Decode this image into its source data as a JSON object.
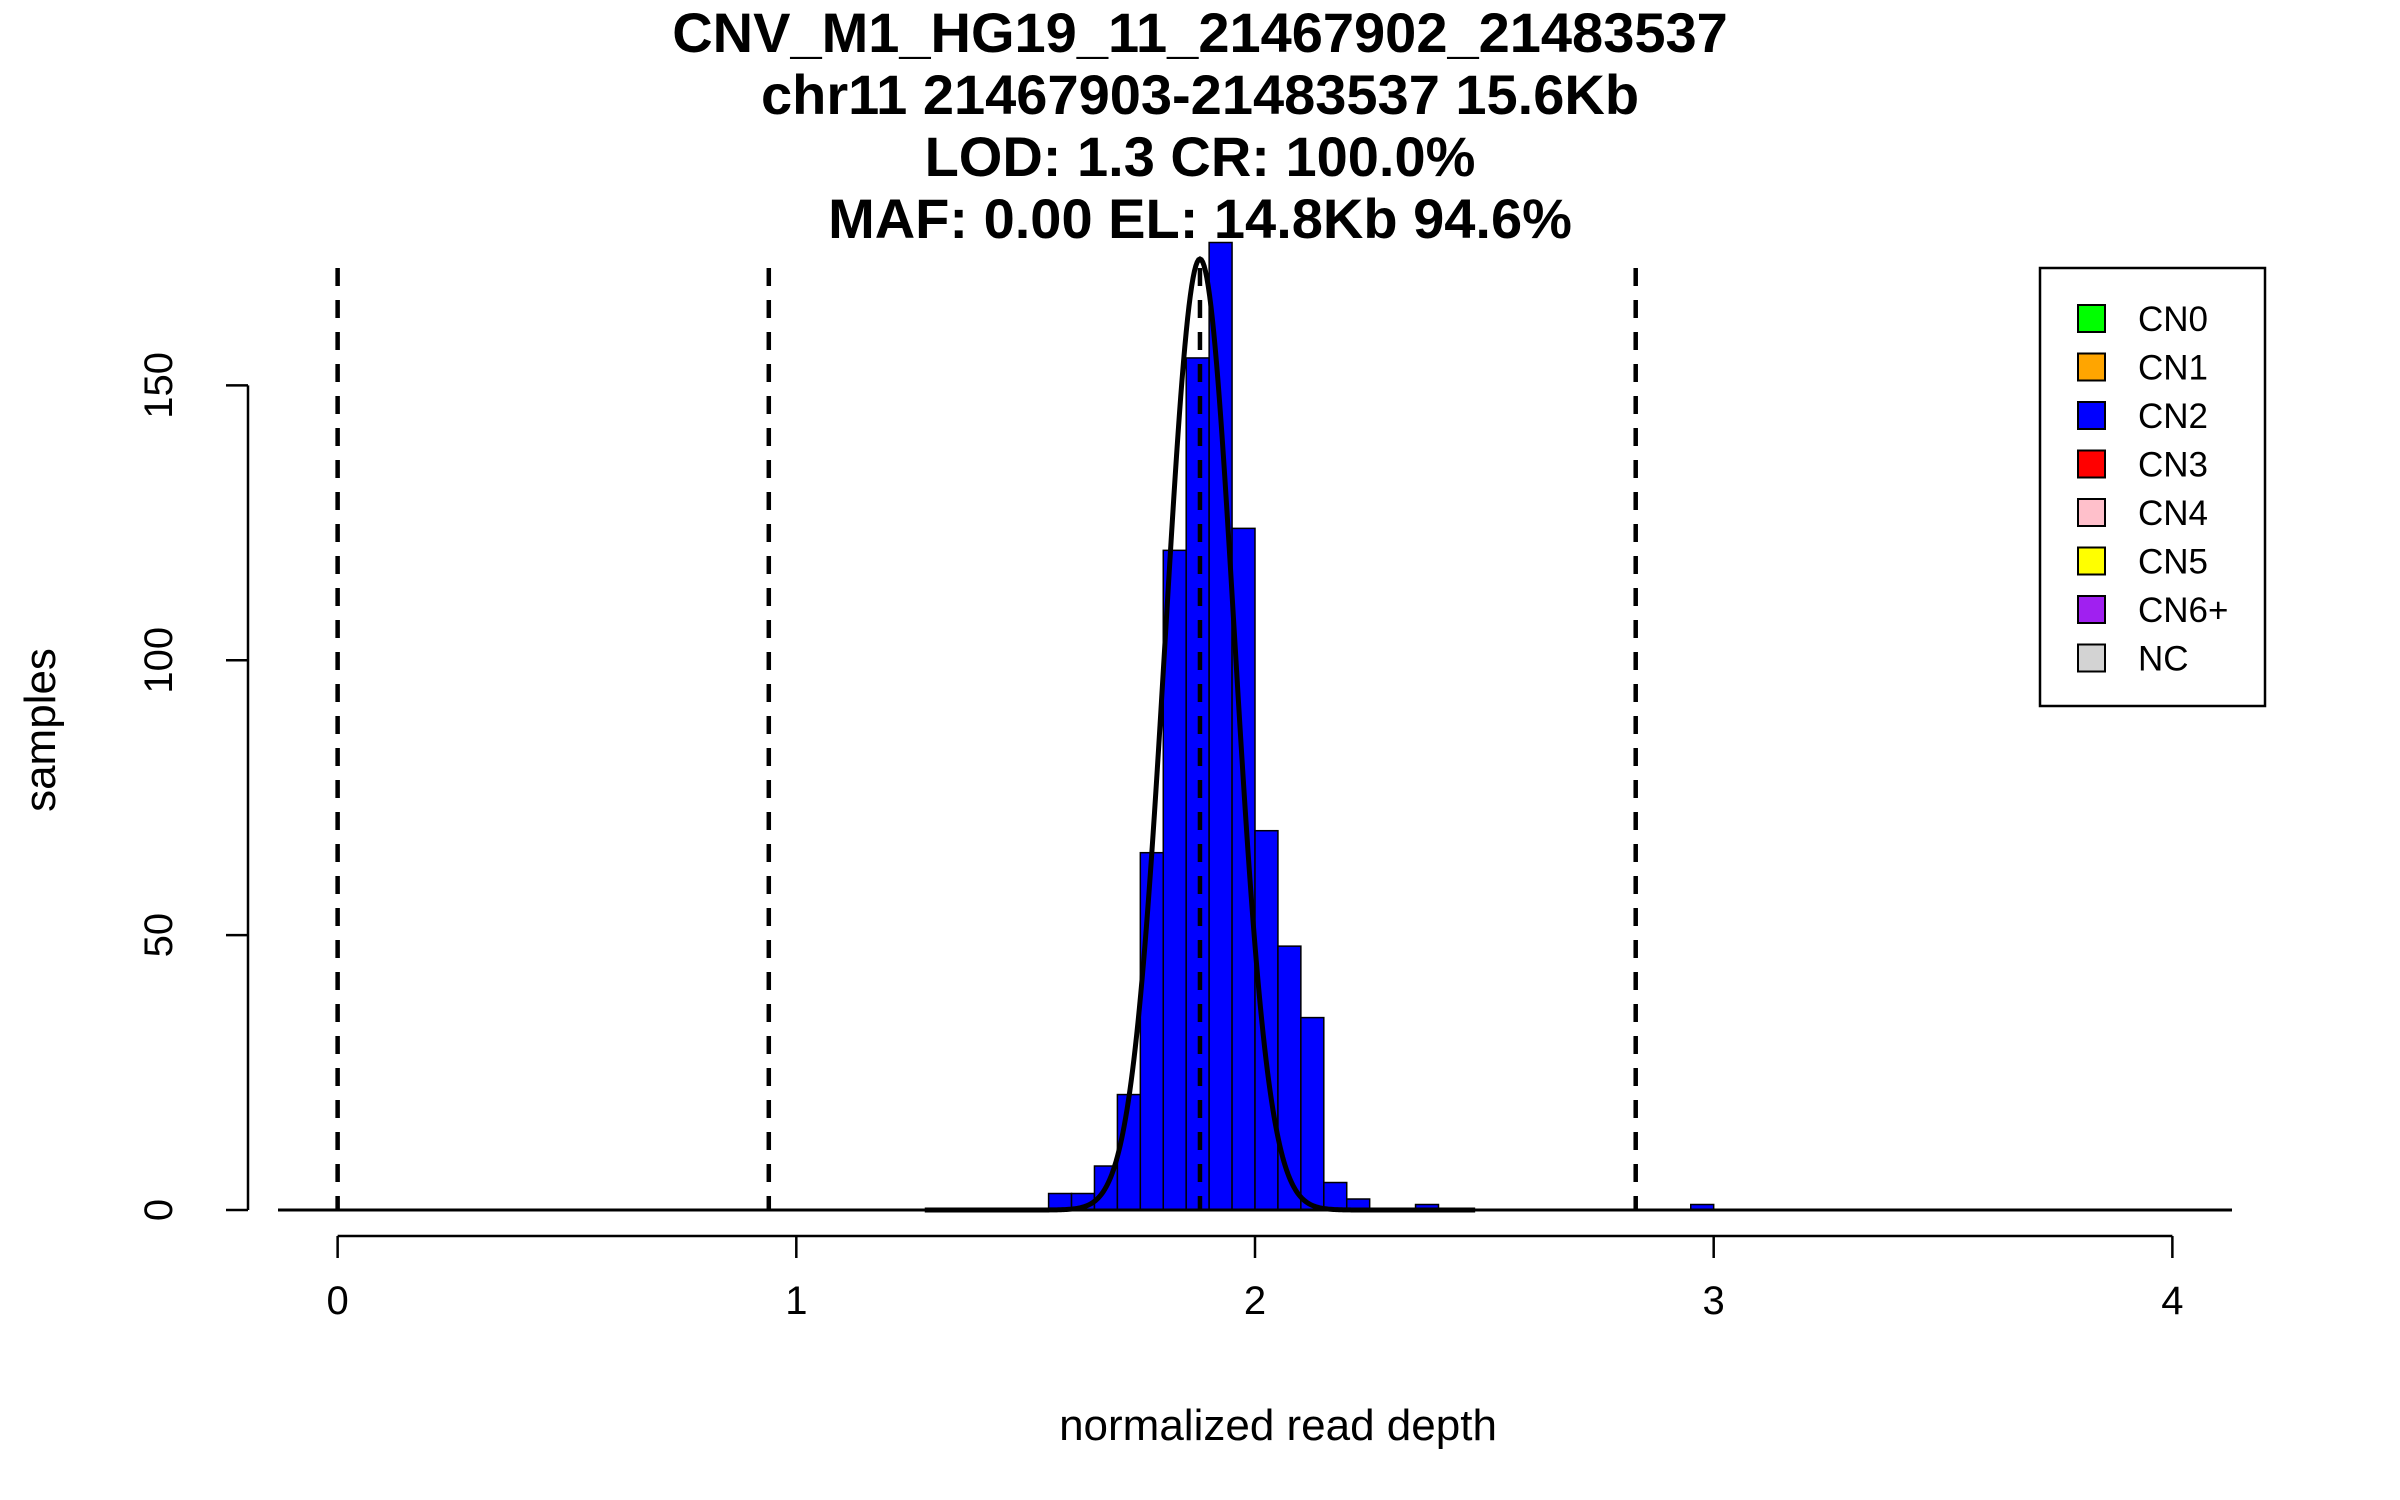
{
  "chart_data": {
    "type": "bar",
    "title_lines": [
      "CNV_M1_HG19_11_21467902_21483537",
      "chr11 21467903-21483537 15.6Kb",
      "LOD: 1.3 CR: 100.0%",
      "MAF: 0.00 EL: 14.8Kb 94.6%"
    ],
    "xlabel": "normalized read depth",
    "ylabel": "samples",
    "xlim": [
      -0.13,
      4.13
    ],
    "ylim": [
      0,
      175
    ],
    "xticks": [
      "0",
      "1",
      "2",
      "3",
      "4"
    ],
    "yticks": [
      "0",
      "50",
      "100",
      "150"
    ],
    "bin_width": 0.05,
    "bins": [
      {
        "x0": 1.55,
        "x1": 1.6,
        "count": 3
      },
      {
        "x0": 1.6,
        "x1": 1.65,
        "count": 3
      },
      {
        "x0": 1.65,
        "x1": 1.7,
        "count": 8
      },
      {
        "x0": 1.7,
        "x1": 1.75,
        "count": 21
      },
      {
        "x0": 1.75,
        "x1": 1.8,
        "count": 65
      },
      {
        "x0": 1.8,
        "x1": 1.85,
        "count": 120
      },
      {
        "x0": 1.85,
        "x1": 1.9,
        "count": 155
      },
      {
        "x0": 1.9,
        "x1": 1.95,
        "count": 176
      },
      {
        "x0": 1.95,
        "x1": 2.0,
        "count": 124
      },
      {
        "x0": 2.0,
        "x1": 2.05,
        "count": 69
      },
      {
        "x0": 2.05,
        "x1": 2.1,
        "count": 48
      },
      {
        "x0": 2.1,
        "x1": 2.15,
        "count": 35
      },
      {
        "x0": 2.15,
        "x1": 2.2,
        "count": 5
      },
      {
        "x0": 2.2,
        "x1": 2.25,
        "count": 2
      },
      {
        "x0": 2.35,
        "x1": 2.4,
        "count": 1
      },
      {
        "x0": 2.95,
        "x1": 3.0,
        "count": 1
      }
    ],
    "bar_color": "#0000ff",
    "fit_curve": {
      "mean": 1.88,
      "sd": 0.075,
      "peak": 173
    },
    "dashed_lines_x": [
      0.0,
      0.94,
      1.88,
      2.83
    ],
    "legend": {
      "placement": "top-right",
      "entries": [
        {
          "label": "CN0",
          "color": "#00ff00"
        },
        {
          "label": "CN1",
          "color": "#ffa500"
        },
        {
          "label": "CN2",
          "color": "#0000ff"
        },
        {
          "label": "CN3",
          "color": "#ff0000"
        },
        {
          "label": "CN4",
          "color": "#ffc0cb"
        },
        {
          "label": "CN5",
          "color": "#ffff00"
        },
        {
          "label": "CN6+",
          "color": "#a020f0"
        },
        {
          "label": "NC",
          "color": "#d3d3d3"
        }
      ]
    },
    "grid": false
  }
}
